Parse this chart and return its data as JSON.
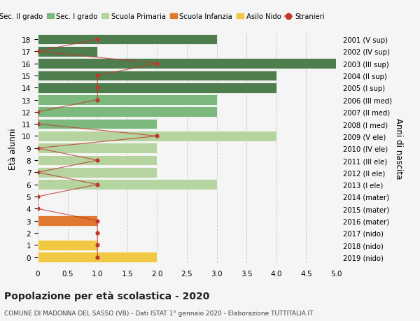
{
  "ages": [
    18,
    17,
    16,
    15,
    14,
    13,
    12,
    11,
    10,
    9,
    8,
    7,
    6,
    5,
    4,
    3,
    2,
    1,
    0
  ],
  "years": [
    "2001 (V sup)",
    "2002 (IV sup)",
    "2003 (III sup)",
    "2004 (II sup)",
    "2005 (I sup)",
    "2006 (III med)",
    "2007 (II med)",
    "2008 (I med)",
    "2009 (V ele)",
    "2010 (IV ele)",
    "2011 (III ele)",
    "2012 (II ele)",
    "2013 (I ele)",
    "2014 (mater)",
    "2015 (mater)",
    "2016 (mater)",
    "2017 (nido)",
    "2018 (nido)",
    "2019 (nido)"
  ],
  "bar_values": [
    3.0,
    1.0,
    5.0,
    4.0,
    4.0,
    3.0,
    3.0,
    2.0,
    4.0,
    2.0,
    2.0,
    2.0,
    3.0,
    0.0,
    0.0,
    1.0,
    0.0,
    1.0,
    2.0
  ],
  "bar_colors": [
    "#4e7d4e",
    "#4e7d4e",
    "#4e7d4e",
    "#4e7d4e",
    "#4e7d4e",
    "#7db87d",
    "#7db87d",
    "#7db87d",
    "#b5d4a0",
    "#b5d4a0",
    "#b5d4a0",
    "#b5d4a0",
    "#b5d4a0",
    "#cde8b0",
    "#cde8b0",
    "#e07830",
    "#f0c842",
    "#f0c842",
    "#f0c842"
  ],
  "stranieri_values": [
    1.0,
    0.0,
    2.0,
    1.0,
    1.0,
    1.0,
    0.0,
    0.0,
    2.0,
    0.0,
    1.0,
    0.0,
    1.0,
    0.0,
    0.0,
    1.0,
    1.0,
    1.0,
    1.0
  ],
  "legend_labels": [
    "Sec. II grado",
    "Sec. I grado",
    "Scuola Primaria",
    "Scuola Infanzia",
    "Asilo Nido",
    "Stranieri"
  ],
  "legend_colors": [
    "#4e7d4e",
    "#7db87d",
    "#b5d4a0",
    "#e07830",
    "#f0c842",
    "#c0392b"
  ],
  "title": "Popolazione per età scolastica - 2020",
  "subtitle": "COMUNE DI MADONNA DEL SASSO (VB) - Dati ISTAT 1° gennaio 2020 - Elaborazione TUTTITALIA.IT",
  "ylabel_left": "Età alunni",
  "ylabel_right": "Anni di nascita",
  "xlim": [
    0,
    5.0
  ],
  "stranieri_color": "#c0392b",
  "bar_height": 0.85,
  "background_color": "#f5f5f5"
}
